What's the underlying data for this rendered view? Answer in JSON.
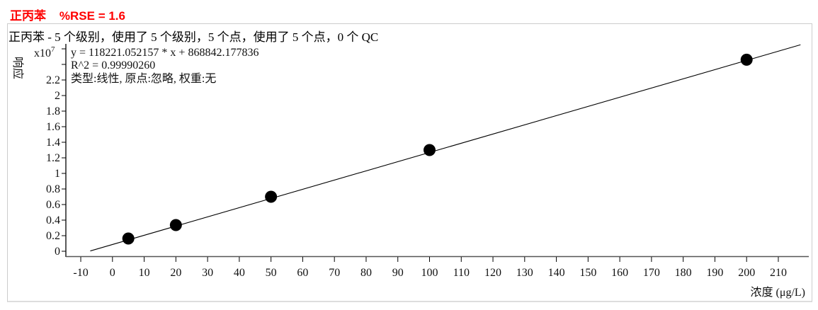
{
  "header": {
    "compound": "正丙苯",
    "rse": "%RSE = 1.6"
  },
  "subtitle": "正丙苯 - 5 个级别，使用了 5 个级别，5 个点，使用了 5 个点，0 个 QC",
  "chart_data": {
    "type": "scatter",
    "xlabel": "浓度 (μg/L)",
    "ylabel": "响应",
    "y_multiplier": "x10",
    "y_exponent": "7",
    "xlim": [
      -15,
      220
    ],
    "ylim": [
      -0.05,
      2.7
    ],
    "xticks": [
      -10,
      0,
      10,
      20,
      30,
      40,
      50,
      60,
      70,
      80,
      90,
      100,
      110,
      120,
      130,
      140,
      150,
      160,
      170,
      180,
      190,
      200,
      210
    ],
    "yticks": [
      0,
      0.2,
      0.4,
      0.6,
      0.8,
      1,
      1.2,
      1.4,
      1.6,
      1.8,
      2,
      2.2,
      2.4,
      2.6
    ],
    "ytick_labels": [
      "0",
      "0.2",
      "0.4",
      "0.6",
      "0.8",
      "1",
      "1.2",
      "1.4",
      "1.6",
      "1.8",
      "2",
      "2.2",
      "",
      ""
    ],
    "points": [
      {
        "x": 5,
        "y": 0.164
      },
      {
        "x": 20,
        "y": 0.336
      },
      {
        "x": 50,
        "y": 0.7
      },
      {
        "x": 100,
        "y": 1.3
      },
      {
        "x": 200,
        "y": 2.46
      }
    ],
    "fit": {
      "slope": 118221.052157,
      "intercept": 868842.177836,
      "x_range": [
        -7,
        217
      ]
    },
    "annotations": [
      "y = 118221.052157 * x  + 868842.177836",
      "R^2 = 0.99990260",
      "类型:线性, 原点:忽略, 权重:无"
    ],
    "grid": false,
    "colors": {
      "header": "#ff0000",
      "points": "#000000",
      "line": "#000000"
    }
  }
}
